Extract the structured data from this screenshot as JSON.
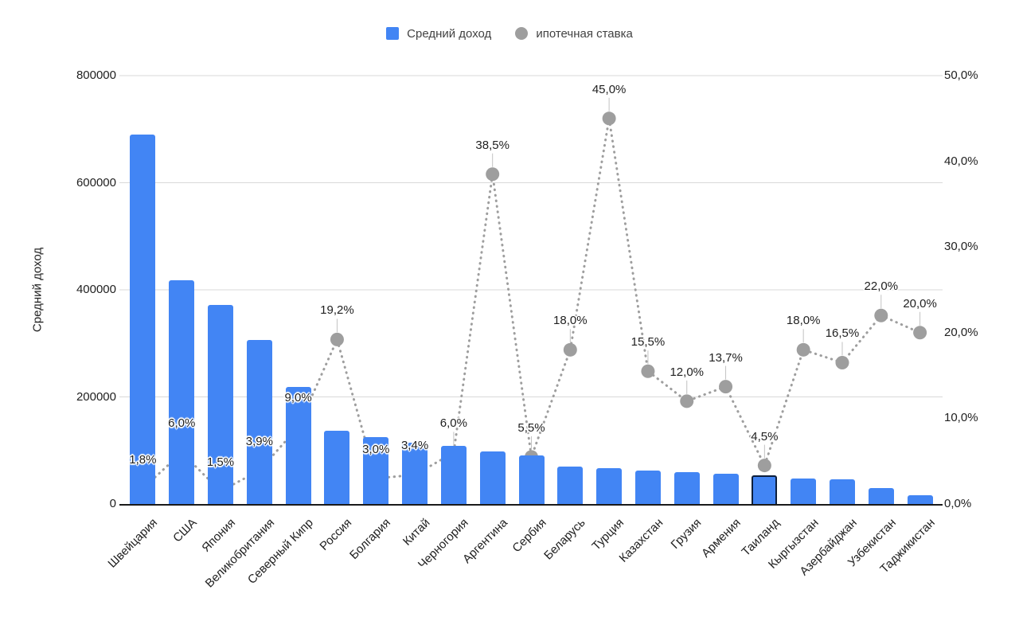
{
  "legend": {
    "items": [
      {
        "label": "Средний доход",
        "swatch": "square",
        "color": "#4285f4"
      },
      {
        "label": "ипотечная ставка",
        "swatch": "circle",
        "color": "#9e9e9e"
      }
    ]
  },
  "colors": {
    "bar": "#4285f4",
    "bar_highlight_outline": "#0d1f3c",
    "line": "#9e9e9e",
    "marker": "#9e9e9e",
    "leader": "#c2c2c2",
    "grid": "#d9d9d9",
    "baseline": "#1a1a1a",
    "text": "#212121"
  },
  "chart_data": {
    "type": "bar",
    "subtype": "combo-bar-and-dotted-line-with-points",
    "title": "",
    "legend_position": "top",
    "grid": true,
    "categories": [
      "Швейцария",
      "США",
      "Япония",
      "Великобритания",
      "Северный Кипр",
      "Россия",
      "Болгария",
      "Китай",
      "Черногория",
      "Аргентина",
      "Сербия",
      "Беларусь",
      "Турция",
      "Казахстан",
      "Грузия",
      "Армения",
      "Таиланд",
      "Кыргызстан",
      "Азербайджан",
      "Узбекистан",
      "Таджикистан"
    ],
    "series": [
      {
        "name": "Средний доход",
        "type": "bar",
        "axis": "left",
        "color": "#4285f4",
        "values": [
          690000,
          418000,
          372000,
          306000,
          219000,
          137000,
          125000,
          115000,
          108000,
          98000,
          91000,
          70000,
          67000,
          63000,
          60000,
          56000,
          53000,
          48000,
          46000,
          30000,
          17000
        ]
      },
      {
        "name": "ипотечная ставка",
        "type": "line",
        "style": "dotted-with-round-points",
        "axis": "right",
        "color": "#9e9e9e",
        "values": [
          1.8,
          6.0,
          1.5,
          3.9,
          9.0,
          19.2,
          3.0,
          3.4,
          6.0,
          38.5,
          5.5,
          18.0,
          45.0,
          15.5,
          12.0,
          13.7,
          4.5,
          18.0,
          16.5,
          22.0,
          20.0
        ],
        "point_labels": [
          "1,8%",
          "6,0%",
          "1,5%",
          "3,9%",
          "9,0%",
          "19,2%",
          "3,0%",
          "3,4%",
          "6,0%",
          "38,5%",
          "5,5%",
          "18,0%",
          "45,0%",
          "15,5%",
          "12,0%",
          "13,7%",
          "4,5%",
          "18,0%",
          "16,5%",
          "22,0%",
          "20,0%"
        ]
      }
    ],
    "left_axis": {
      "title": "Средний доход",
      "range": [
        0,
        800000
      ],
      "ticks": [
        0,
        200000,
        400000,
        600000,
        800000
      ],
      "tick_labels": [
        "0",
        "200000",
        "400000",
        "600000",
        "800000"
      ]
    },
    "right_axis": {
      "range": [
        0,
        50
      ],
      "ticks": [
        0,
        10,
        20,
        30,
        40,
        50
      ],
      "tick_labels": [
        "0,0%",
        "10,0%",
        "20,0%",
        "30,0%",
        "40,0%",
        "50,0%"
      ]
    },
    "highlighted_category": "Таиланд"
  }
}
